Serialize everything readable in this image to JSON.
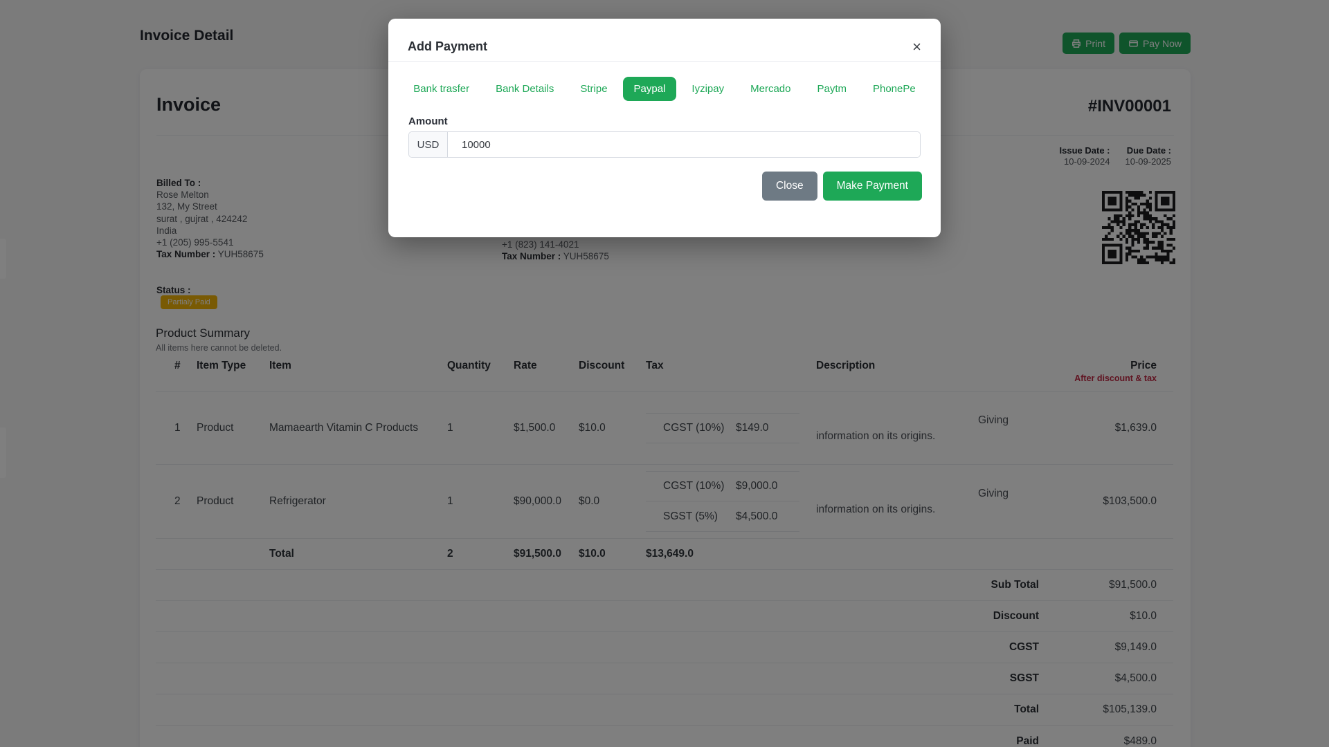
{
  "colors": {
    "accent_green": "#1ea857",
    "secondary_gray": "#6e7a84",
    "status_warning": "#f3b408",
    "price_note_red": "#c12742"
  },
  "page": {
    "title": "Invoice Detail",
    "print_label": "Print",
    "pay_now_label": "Pay Now"
  },
  "invoice": {
    "heading": "Invoice",
    "number": "#INV00001",
    "issue_date_label": "Issue Date :",
    "issue_date": "10-09-2024",
    "due_date_label": "Due Date :",
    "due_date": "10-09-2025",
    "billed_to": {
      "label": "Billed To :",
      "name": "Rose Melton",
      "address_line1": "132, My Street",
      "address_line2": "surat , gujrat , 424242",
      "country": "India",
      "phone": "+1 (205) 995-5541",
      "tax_label": "Tax Number :",
      "tax_number": "YUH58675"
    },
    "partial_block": {
      "phone": "+1 (823) 141-4021",
      "tax_label": "Tax Number :",
      "tax_number": "YUH58675"
    },
    "status_label": "Status :",
    "status_badge": "Partialy Paid"
  },
  "product_summary": {
    "title": "Product Summary",
    "subtitle": "All items here cannot be deleted.",
    "columns": [
      "#",
      "Item Type",
      "Item",
      "Quantity",
      "Rate",
      "Discount",
      "Tax",
      "Description",
      "Price"
    ],
    "price_subheader": "After discount & tax",
    "rows": [
      {
        "num": "1",
        "item_type": "Product",
        "item": "Mamaearth Vitamin C Products",
        "quantity": "1",
        "rate": "$1,500.0",
        "discount": "$10.0",
        "taxes": [
          {
            "name": "CGST (10%)",
            "amount": "$149.0"
          }
        ],
        "description": "Giving information on its origins.",
        "price": "$1,639.0"
      },
      {
        "num": "2",
        "item_type": "Product",
        "item": "Refrigerator",
        "quantity": "1",
        "rate": "$90,000.0",
        "discount": "$0.0",
        "taxes": [
          {
            "name": "CGST (10%)",
            "amount": "$9,000.0"
          },
          {
            "name": "SGST (5%)",
            "amount": "$4,500.0"
          }
        ],
        "description": "Giving information on its origins.",
        "price": "$103,500.0"
      }
    ],
    "total_row": {
      "label": "Total",
      "quantity": "2",
      "rate": "$91,500.0",
      "discount": "$10.0",
      "tax": "$13,649.0"
    },
    "summary": [
      {
        "label": "Sub Total",
        "value": "$91,500.0"
      },
      {
        "label": "Discount",
        "value": "$10.0"
      },
      {
        "label": "CGST",
        "value": "$9,149.0"
      },
      {
        "label": "SGST",
        "value": "$4,500.0"
      },
      {
        "label": "Total",
        "value": "$105,139.0"
      },
      {
        "label": "Paid",
        "value": "$489.0"
      }
    ]
  },
  "modal": {
    "title": "Add Payment",
    "close_glyph": "×",
    "tabs": [
      "Bank trasfer",
      "Bank Details",
      "Stripe",
      "Paypal",
      "Iyzipay",
      "Mercado",
      "Paytm",
      "PhonePe"
    ],
    "amount_label": "Amount",
    "currency": "USD",
    "amount_value": "10000",
    "close_button": "Close",
    "make_payment_button": "Make Payment"
  }
}
